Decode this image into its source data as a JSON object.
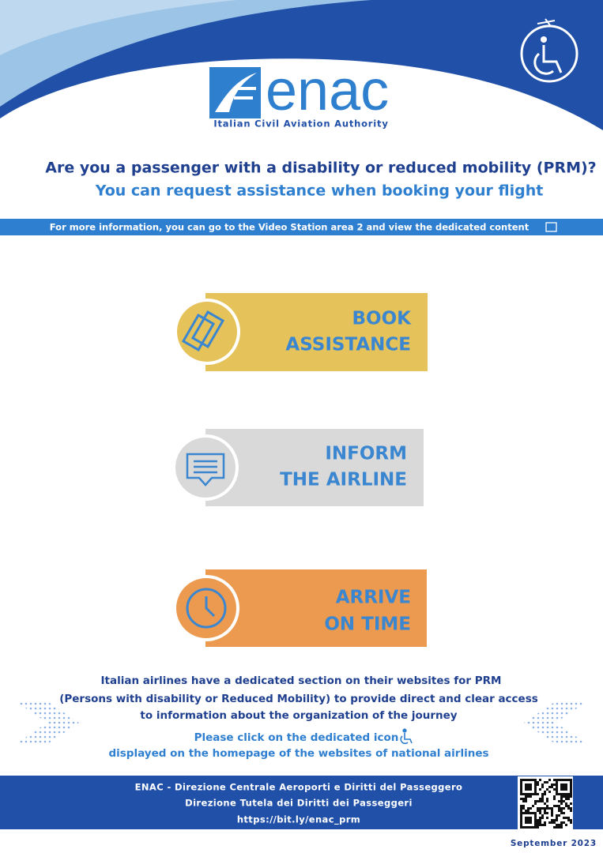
{
  "logo": {
    "name": "enac",
    "subtitle": "Italian Civil Aviation Authority"
  },
  "headline": {
    "question": "Are you a passenger with a disability or reduced mobility (PRM)?",
    "answer": "You can request assistance when booking your flight"
  },
  "info_bar": "For more information, you can go to the Video Station area 2 and view the dedicated content",
  "steps": [
    {
      "lines": [
        "BOOK",
        "ASSISTANCE"
      ]
    },
    {
      "lines": [
        "INFORM",
        "THE AIRLINE"
      ]
    },
    {
      "lines": [
        "ARRIVE",
        "ON TIME"
      ]
    }
  ],
  "body": [
    "Italian airlines have a dedicated section on their websites for PRM",
    "(Persons with disability or Reduced Mobility) to provide direct and clear access",
    "to information about the organization of the journey"
  ],
  "note": [
    "Please click on the dedicated icon",
    "displayed on the homepage of the websites of national airlines"
  ],
  "footer": [
    "ENAC - Direzione Centrale Aeroporti e Diritti del Passeggero",
    "Direzione Tutela dei Diritti dei Passeggeri",
    "https://bit.ly/enac_prm"
  ],
  "date": "September 2023"
}
